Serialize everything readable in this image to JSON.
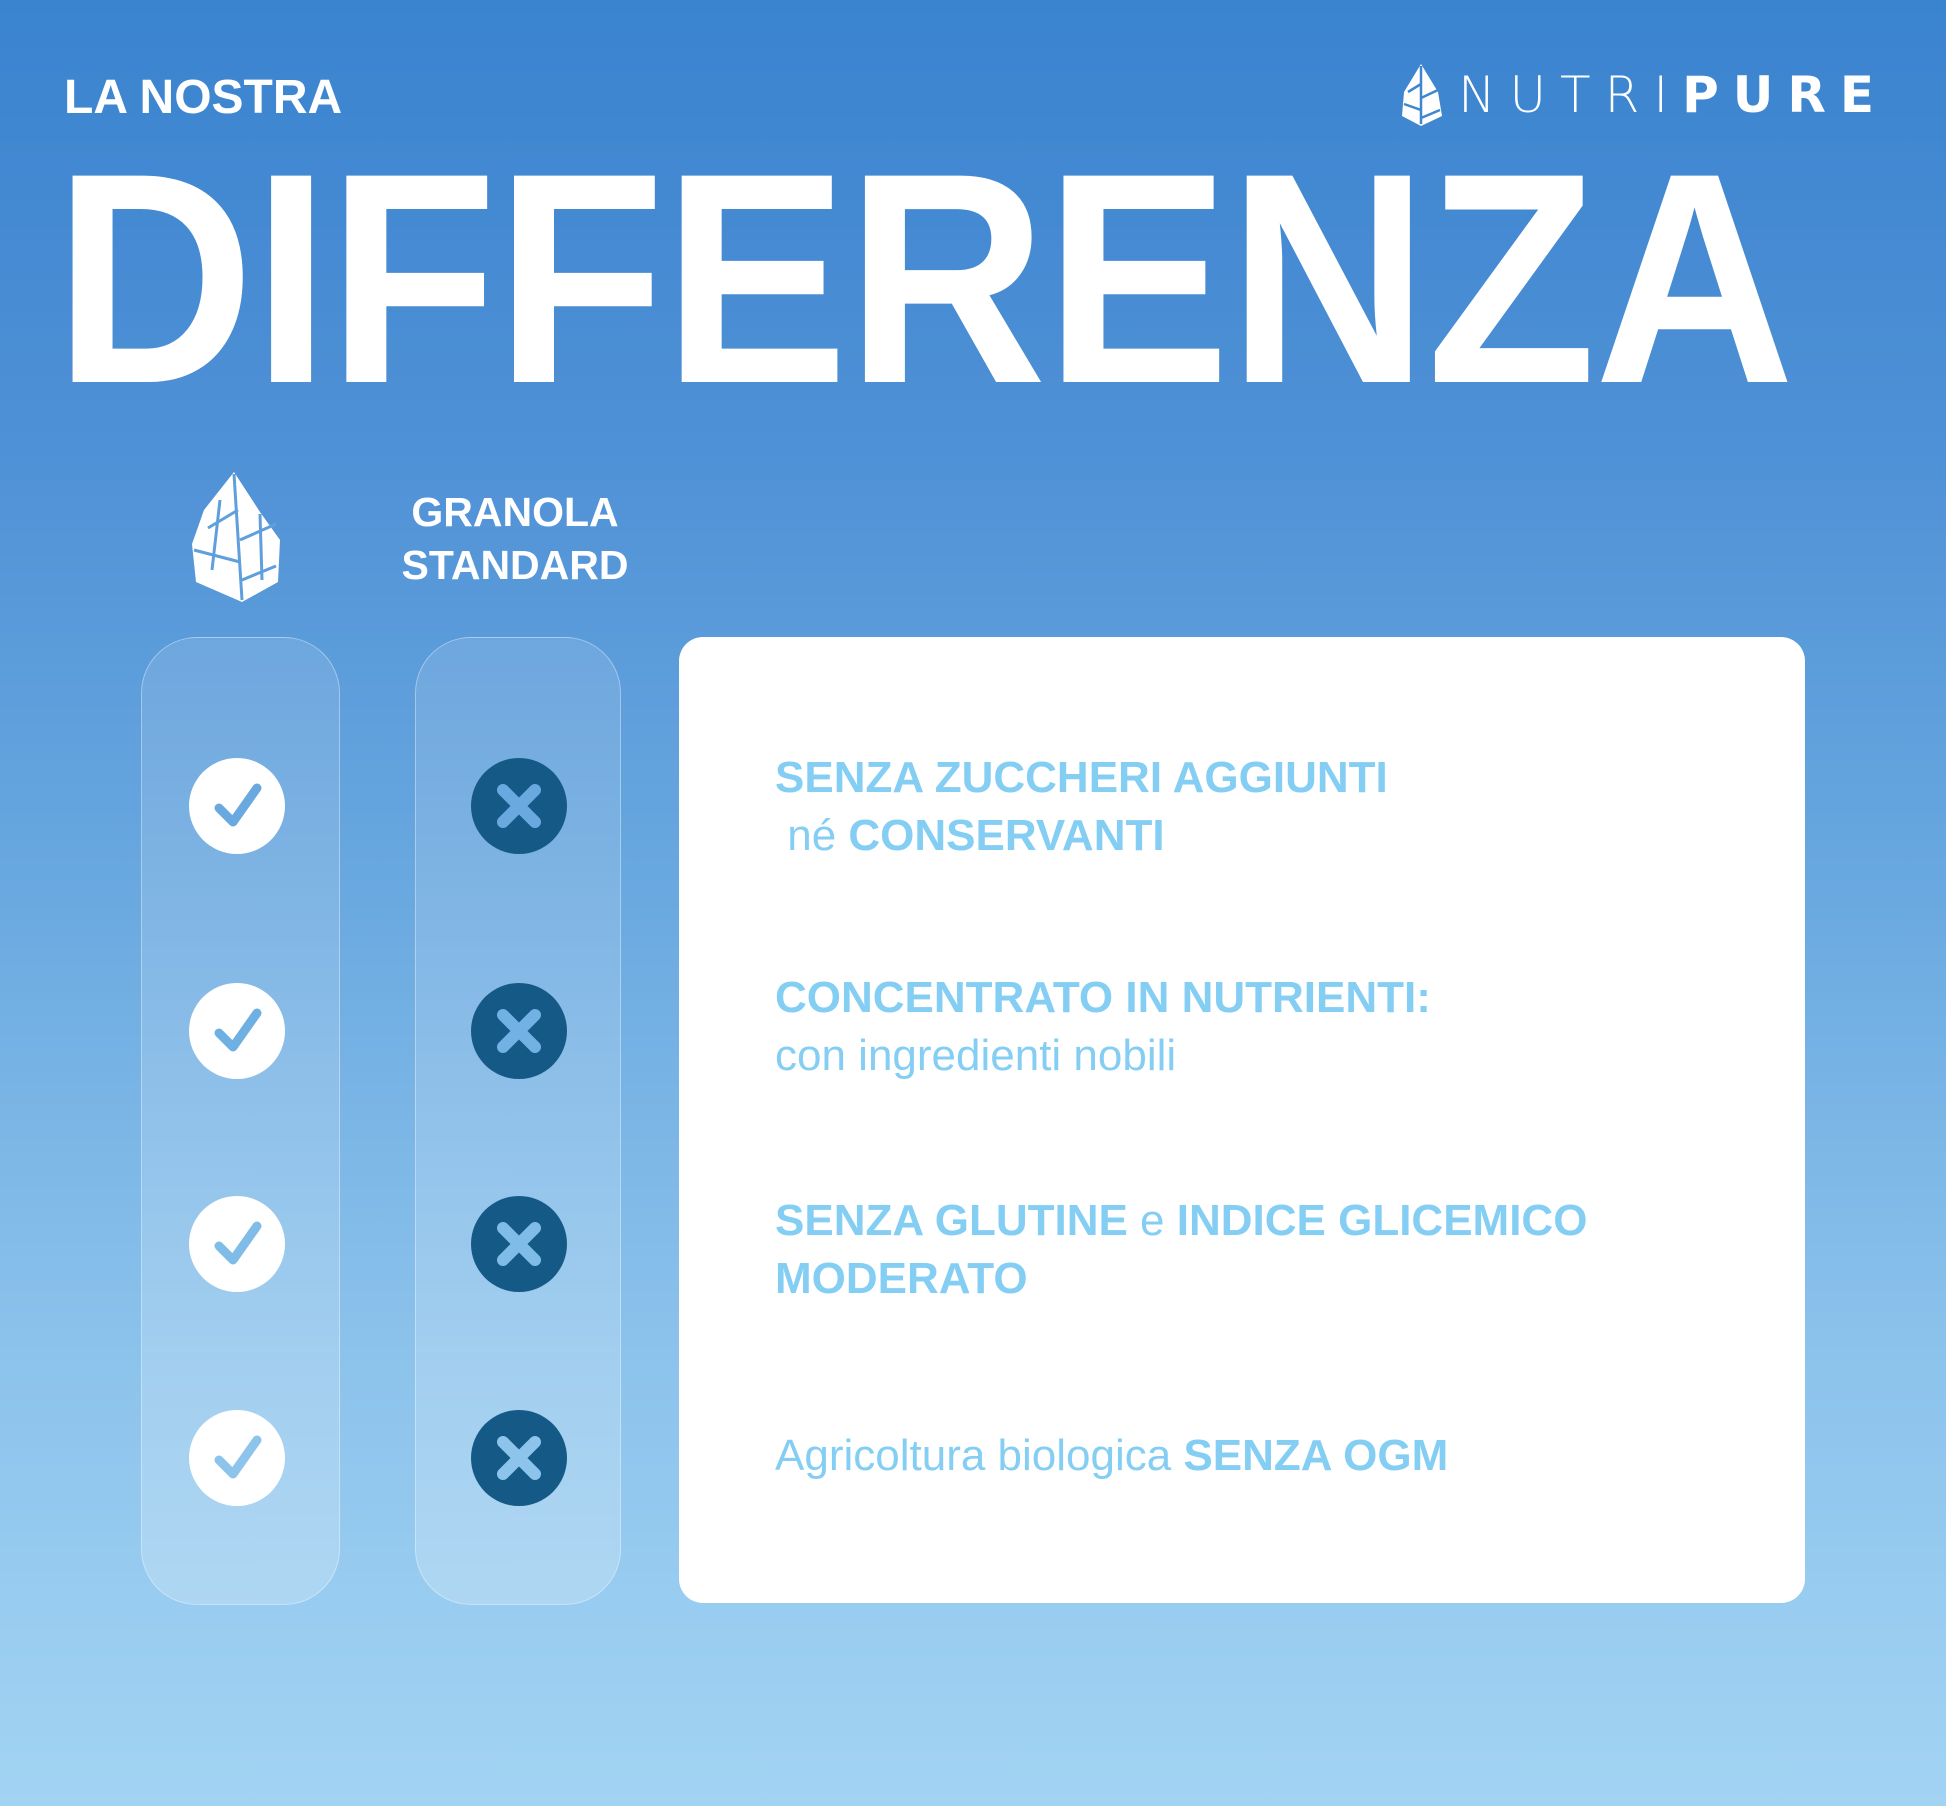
{
  "header": {
    "kicker": "LA NOSTRA",
    "title": "DIFFERENZA"
  },
  "brand": {
    "name_light": "NUTRI",
    "name_bold": "PURE",
    "icon": "leaf-icon"
  },
  "comparison": {
    "ours_icon": "leaf-icon",
    "standard_label_line1": "GRANOLA",
    "standard_label_line2": "STANDARD",
    "ours_marks": [
      "check",
      "check",
      "check",
      "check"
    ],
    "standard_marks": [
      "cross",
      "cross",
      "cross",
      "cross"
    ]
  },
  "features": [
    {
      "a": "SENZA ZUCCHERI AGGIUNTI",
      "b": " né ",
      "c": "CONSERVANTI"
    },
    {
      "a": "CONCENTRATO IN NUTRIENTI:",
      "b": "con ingredienti nobili"
    },
    {
      "a": "SENZA GLUTINE",
      "b": " e ",
      "c": "INDICE GLICEMICO",
      "d": "MODERATO"
    },
    {
      "a": "Agricoltura biologica ",
      "b": "SENZA OGM"
    }
  ],
  "colors": {
    "accent_text": "#84cef4",
    "cross_circle": "#155a86",
    "bg_top": "#3a83cf",
    "bg_bottom": "#a2d3f3"
  }
}
